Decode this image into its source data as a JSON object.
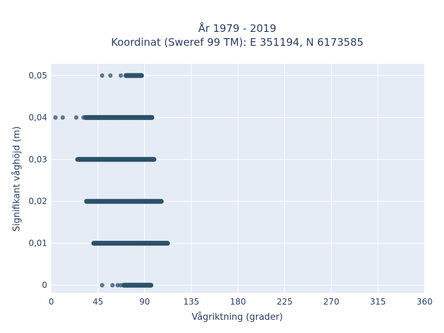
{
  "chart_data": {
    "type": "scatter",
    "title": "År 1979 - 2019",
    "subtitle": "Koordinat (Sweref 99 TM): E 351194, N 6173585",
    "xlabel": "Vågriktning (grader)",
    "ylabel": "Signifikant våghöjd (m)",
    "xlim": [
      0,
      360
    ],
    "ylim": [
      -0.0018,
      0.0528
    ],
    "x_ticks": [
      0,
      45,
      90,
      135,
      180,
      225,
      270,
      315,
      360
    ],
    "x_tick_labels": [
      "0",
      "45",
      "90",
      "135",
      "180",
      "225",
      "270",
      "315",
      "360"
    ],
    "y_ticks": [
      0,
      0.01,
      0.02,
      0.03,
      0.04,
      0.05
    ],
    "y_tick_labels": [
      "0",
      "0,01",
      "0,02",
      "0,03",
      "0,04",
      "0,05"
    ],
    "grid": true,
    "legend": "none",
    "marker_color": "#2e5269",
    "plot_bg": "#e5ecf6",
    "series": [
      {
        "points": [
          {
            "y": 0.05,
            "x_min": 72,
            "x_max": 87,
            "scattered": [
              49,
              57,
              67
            ]
          },
          {
            "y": 0.04,
            "x_min": 33,
            "x_max": 97,
            "scattered": [
              4,
              11,
              24,
              31
            ]
          },
          {
            "y": 0.03,
            "x_min": 26,
            "x_max": 99,
            "scattered": [
              25
            ]
          },
          {
            "y": 0.02,
            "x_min": 34,
            "x_max": 106,
            "scattered": []
          },
          {
            "y": 0.01,
            "x_min": 41,
            "x_max": 112,
            "scattered": []
          },
          {
            "y": 0.0,
            "x_min": 70,
            "x_max": 96,
            "scattered": [
              49,
              59,
              64,
              67
            ]
          }
        ]
      }
    ]
  }
}
